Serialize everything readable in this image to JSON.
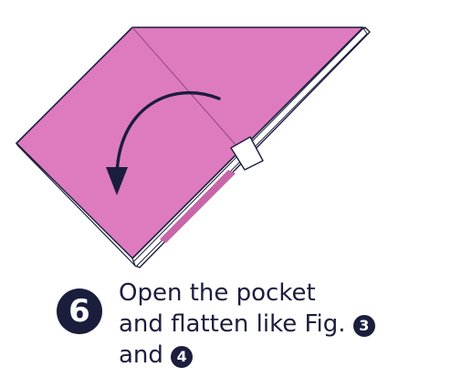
{
  "colors": {
    "paper_front": "#de7bbf",
    "paper_edge": "#c766a9",
    "paper_white": "#ffffff",
    "outline": "#1b1d3d",
    "crease": "#9e4e86",
    "arrow": "#1b1d3d",
    "text": "#1b1d3d"
  },
  "step": {
    "number": "6",
    "caption_line1": "Open the pocket",
    "caption_line2": "and flatten like Fig.",
    "caption_line2_ref": "3",
    "caption_line3": "and",
    "caption_line3_ref": "4"
  },
  "icons": {
    "arrow": "curved-rotate-arrow-icon",
    "pocket_marker": "open-pocket-flap-icon"
  }
}
